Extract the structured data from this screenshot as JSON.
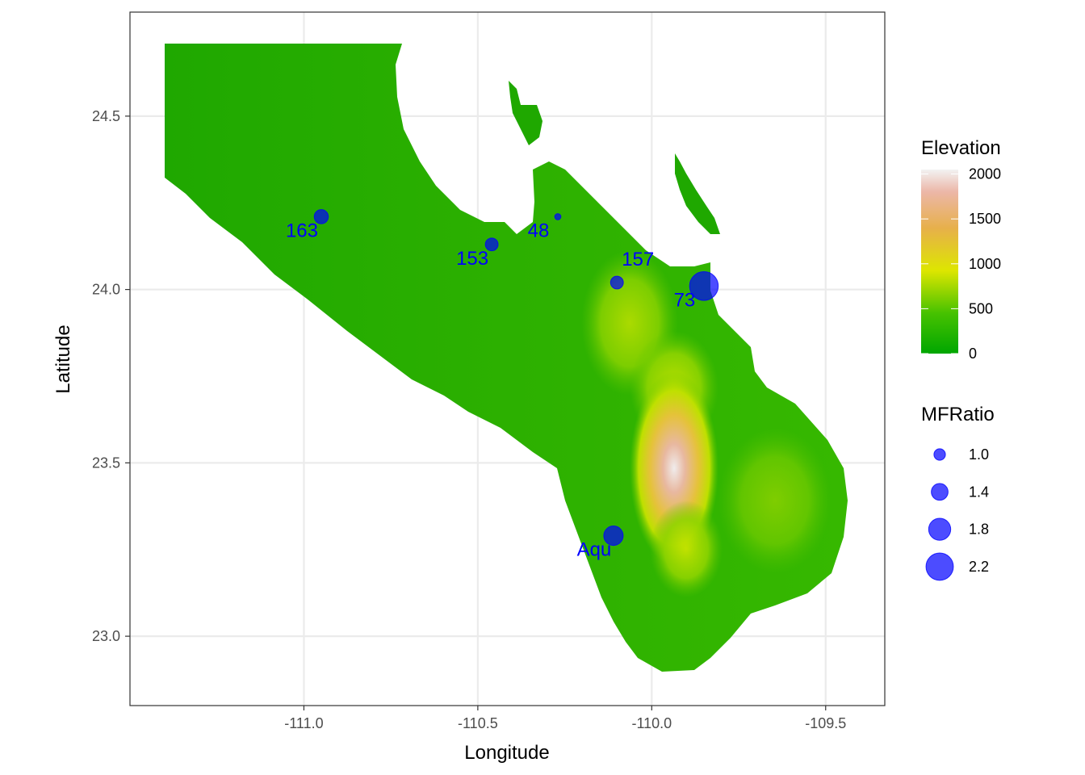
{
  "chart_data": {
    "type": "scatter",
    "xlabel": "Longitude",
    "ylabel": "Latitude",
    "xlim": [
      -111.5,
      -109.33
    ],
    "ylim": [
      22.8,
      24.8
    ],
    "x_ticks": [
      -111.0,
      -110.5,
      -110.0,
      -109.5
    ],
    "x_tick_labels": [
      "-111.0",
      "-110.5",
      "-110.0",
      "-109.5"
    ],
    "y_ticks": [
      23.0,
      23.5,
      24.0,
      24.5
    ],
    "y_tick_labels": [
      "23.0",
      "23.5",
      "24.0",
      "24.5"
    ],
    "grid": true,
    "point_color": "#0000ff",
    "label_color": "#0000ff",
    "points": [
      {
        "label": "163",
        "lon": -110.95,
        "lat": 24.21,
        "mfratio": 1.2
      },
      {
        "label": "153",
        "lon": -110.46,
        "lat": 24.13,
        "mfratio": 1.1
      },
      {
        "label": "48",
        "lon": -110.27,
        "lat": 24.21,
        "mfratio": 0.6
      },
      {
        "label": "157",
        "lon": -110.1,
        "lat": 24.02,
        "mfratio": 1.1
      },
      {
        "label": "73",
        "lon": -109.85,
        "lat": 24.01,
        "mfratio": 2.3
      },
      {
        "label": "Aqu",
        "lon": -110.11,
        "lat": 23.29,
        "mfratio": 1.6
      }
    ],
    "elevation_legend": {
      "title": "Elevation",
      "breaks": [
        0,
        500,
        1000,
        1500,
        2000
      ],
      "break_labels": [
        "0",
        "500",
        "1000",
        "1500",
        "2000"
      ],
      "gradient_stops": [
        {
          "value": 0,
          "color": "#00a600"
        },
        {
          "value": 500,
          "color": "#3ec100"
        },
        {
          "value": 900,
          "color": "#e6e600"
        },
        {
          "value": 1500,
          "color": "#eab64d"
        },
        {
          "value": 1800,
          "color": "#ecb0a0"
        },
        {
          "value": 2100,
          "color": "#f2f2f2"
        }
      ]
    },
    "size_legend": {
      "title": "MFRatio",
      "values": [
        1.0,
        1.4,
        1.8,
        2.2
      ],
      "labels": [
        "1.0",
        "1.4",
        "1.8",
        "2.2"
      ]
    }
  }
}
